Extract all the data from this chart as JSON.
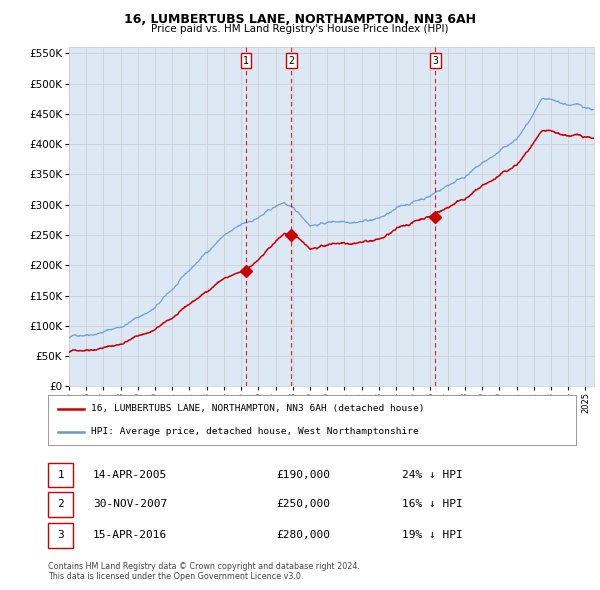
{
  "title": "16, LUMBERTUBS LANE, NORTHAMPTON, NN3 6AH",
  "subtitle": "Price paid vs. HM Land Registry's House Price Index (HPI)",
  "legend_red": "16, LUMBERTUBS LANE, NORTHAMPTON, NN3 6AH (detached house)",
  "legend_blue": "HPI: Average price, detached house, West Northamptonshire",
  "footnote": "Contains HM Land Registry data © Crown copyright and database right 2024.\nThis data is licensed under the Open Government Licence v3.0.",
  "transactions": [
    {
      "num": 1,
      "date": "14-APR-2005",
      "price": 190000,
      "hpi_diff": "24% ↓ HPI",
      "year": 2005.28
    },
    {
      "num": 2,
      "date": "30-NOV-2007",
      "price": 250000,
      "hpi_diff": "16% ↓ HPI",
      "year": 2007.92
    },
    {
      "num": 3,
      "date": "15-APR-2016",
      "price": 280000,
      "hpi_diff": "19% ↓ HPI",
      "year": 2016.28
    }
  ],
  "bg_color": "#dce9f5",
  "chart_bg": "#ffffff",
  "red_color": "#cc0000",
  "blue_color": "#6699cc",
  "vline_color": "#cc0000",
  "grid_color": "#cccccc",
  "ylim": [
    0,
    560000
  ],
  "xlim_start": 1995.0,
  "xlim_end": 2025.5,
  "yticks": [
    0,
    50000,
    100000,
    150000,
    200000,
    250000,
    300000,
    350000,
    400000,
    450000,
    500000,
    550000
  ]
}
